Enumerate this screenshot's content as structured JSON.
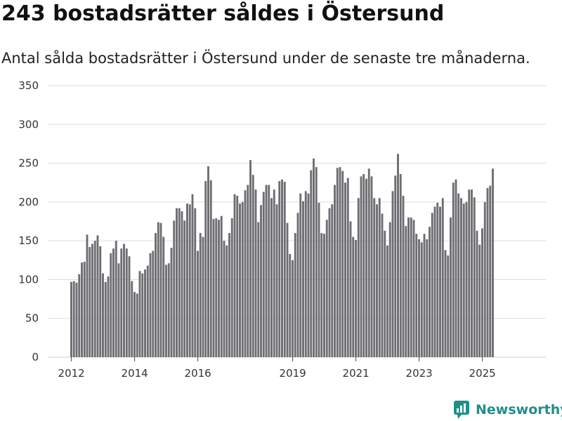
{
  "title": "243 bostadsrätter såldes i Östersund",
  "subtitle": "Antal sålda bostadsrätter i Östersund under de senaste tre månaderna.",
  "brand": {
    "name": "Newsworthy",
    "icon": "newsworthy-logo-icon"
  },
  "colors": {
    "bar": "#6e6d72",
    "highlight": "#1a9c8f",
    "grid": "#dddddd",
    "brand": "#1f8f8a"
  },
  "chart_data": {
    "type": "bar",
    "title": "243 bostadsrätter såldes i Östersund",
    "subtitle": "Antal sålda bostadsrätter i Östersund under de senaste tre månaderna.",
    "xlabel": "",
    "ylabel": "",
    "ylim": [
      0,
      350
    ],
    "y_ticks": [
      "0",
      "50",
      "100",
      "150",
      "200",
      "250",
      "300",
      "350"
    ],
    "x_ticks": [
      "2012",
      "2014",
      "2016",
      "2019",
      "2021",
      "2023",
      "2025"
    ],
    "x_tick_years": [
      2012,
      2014,
      2016,
      2019,
      2021,
      2023,
      2025
    ],
    "start": "2012-01",
    "grid": true,
    "annotation": {
      "label": "243",
      "index": 163
    },
    "values": [
      97,
      98,
      96,
      107,
      122,
      123,
      158,
      142,
      146,
      150,
      157,
      143,
      108,
      97,
      104,
      134,
      140,
      150,
      121,
      140,
      146,
      140,
      130,
      98,
      84,
      82,
      111,
      108,
      113,
      118,
      134,
      137,
      160,
      174,
      173,
      155,
      119,
      121,
      141,
      176,
      192,
      192,
      188,
      176,
      198,
      197,
      210,
      192,
      137,
      160,
      155,
      227,
      246,
      228,
      178,
      179,
      177,
      182,
      150,
      144,
      160,
      179,
      210,
      208,
      198,
      200,
      215,
      222,
      254,
      235,
      216,
      174,
      196,
      213,
      222,
      222,
      205,
      216,
      197,
      227,
      229,
      226,
      173,
      133,
      125,
      160,
      186,
      211,
      201,
      214,
      211,
      241,
      256,
      245,
      199,
      160,
      159,
      177,
      192,
      197,
      222,
      244,
      245,
      240,
      225,
      231,
      175,
      155,
      151,
      205,
      233,
      236,
      230,
      243,
      233,
      205,
      197,
      205,
      185,
      163,
      144,
      174,
      214,
      234,
      262,
      236,
      208,
      169,
      180,
      180,
      177,
      159,
      152,
      148,
      159,
      152,
      168,
      186,
      194,
      199,
      194,
      205,
      138,
      131,
      180,
      225,
      229,
      211,
      205,
      198,
      200,
      216,
      216,
      206,
      163,
      145,
      166,
      200,
      218,
      221,
      243
    ]
  }
}
